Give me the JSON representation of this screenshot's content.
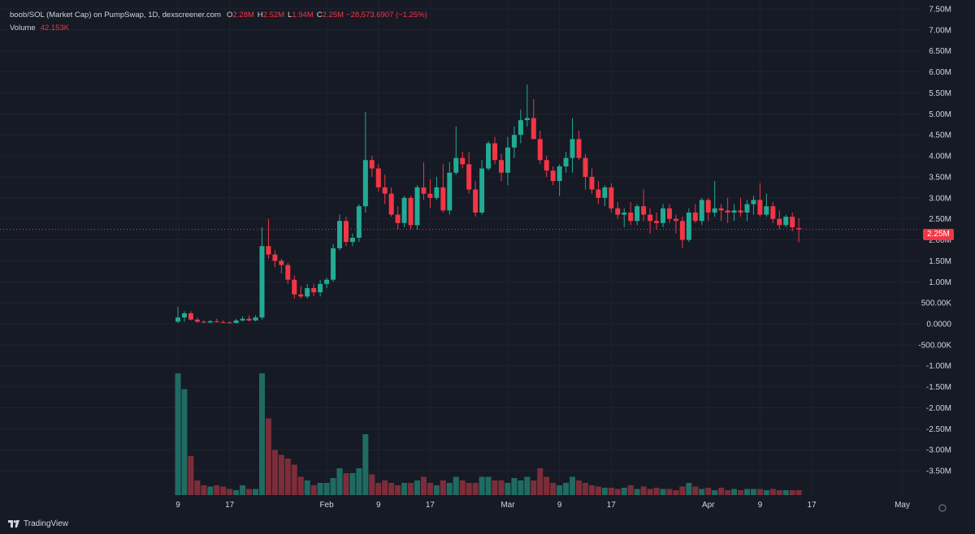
{
  "legend": {
    "symbol": "boob/SOL (Market Cap) on PumpSwap, 1D, dexscreener.com",
    "o_key": "O",
    "o_val": "2.28M",
    "h_key": "H",
    "h_val": "2.52M",
    "l_key": "L",
    "l_val": "1.94M",
    "c_key": "C",
    "c_val": "2.25M",
    "change": "−28,573.6907 (−1.25%)",
    "volume_label": "Volume",
    "volume_val": "42.153K"
  },
  "last_price_label": "2.25M",
  "brand": "TradingView",
  "colors": {
    "up": "#22ab94",
    "down": "#f23645",
    "vol_up": "#1f6b62",
    "vol_down": "#7d2d39",
    "grid": "#1f2330",
    "background": "#161a25"
  },
  "chart_data": {
    "type": "candlestick",
    "timeframe": "1D",
    "y_axis": {
      "range": [
        -3.75,
        7.5
      ],
      "unit": "M",
      "tick_labels": [
        "7.50M",
        "7.00M",
        "6.50M",
        "6.00M",
        "5.50M",
        "5.00M",
        "4.50M",
        "4.00M",
        "3.50M",
        "3.00M",
        "2.50M",
        "2.00M",
        "1.50M",
        "1.00M",
        "500.00K",
        "0.0000",
        "-500.00K",
        "-1.00M",
        "-1.50M",
        "-2.00M",
        "-2.50M",
        "-3.00M",
        "-3.50M"
      ]
    },
    "x_axis": {
      "tick_labels": [
        {
          "label": "9",
          "day": 0
        },
        {
          "label": "17",
          "day": 8
        },
        {
          "label": "Feb",
          "day": 23
        },
        {
          "label": "9",
          "day": 31
        },
        {
          "label": "17",
          "day": 39
        },
        {
          "label": "Mar",
          "day": 51
        },
        {
          "label": "9",
          "day": 59
        },
        {
          "label": "17",
          "day": 67
        },
        {
          "label": "Apr",
          "day": 82
        },
        {
          "label": "9",
          "day": 90
        },
        {
          "label": "17",
          "day": 98
        },
        {
          "label": "May",
          "day": 112
        }
      ]
    },
    "volume_scale_max": 1,
    "candles": [
      {
        "o": 0.05,
        "h": 0.4,
        "l": 0.02,
        "c": 0.15,
        "v": 1.0
      },
      {
        "o": 0.15,
        "h": 0.3,
        "l": 0.05,
        "c": 0.25,
        "v": 0.87
      },
      {
        "o": 0.25,
        "h": 0.3,
        "l": 0.08,
        "c": 0.1,
        "v": 0.32
      },
      {
        "o": 0.1,
        "h": 0.15,
        "l": 0.03,
        "c": 0.05,
        "v": 0.12
      },
      {
        "o": 0.05,
        "h": 0.08,
        "l": 0.02,
        "c": 0.03,
        "v": 0.08
      },
      {
        "o": 0.03,
        "h": 0.1,
        "l": 0.02,
        "c": 0.06,
        "v": 0.07
      },
      {
        "o": 0.06,
        "h": 0.12,
        "l": 0.03,
        "c": 0.04,
        "v": 0.08
      },
      {
        "o": 0.04,
        "h": 0.08,
        "l": 0.02,
        "c": 0.03,
        "v": 0.07
      },
      {
        "o": 0.03,
        "h": 0.06,
        "l": 0.01,
        "c": 0.02,
        "v": 0.05
      },
      {
        "o": 0.02,
        "h": 0.12,
        "l": 0.01,
        "c": 0.08,
        "v": 0.04
      },
      {
        "o": 0.08,
        "h": 0.18,
        "l": 0.05,
        "c": 0.12,
        "v": 0.08
      },
      {
        "o": 0.12,
        "h": 0.2,
        "l": 0.05,
        "c": 0.08,
        "v": 0.05
      },
      {
        "o": 0.08,
        "h": 0.2,
        "l": 0.06,
        "c": 0.15,
        "v": 0.05
      },
      {
        "o": 0.15,
        "h": 2.3,
        "l": 0.1,
        "c": 1.85,
        "v": 1.0
      },
      {
        "o": 1.85,
        "h": 2.5,
        "l": 1.55,
        "c": 1.65,
        "v": 0.63
      },
      {
        "o": 1.65,
        "h": 1.75,
        "l": 1.35,
        "c": 1.5,
        "v": 0.37
      },
      {
        "o": 1.5,
        "h": 1.55,
        "l": 1.2,
        "c": 1.4,
        "v": 0.33
      },
      {
        "o": 1.4,
        "h": 1.45,
        "l": 0.95,
        "c": 1.05,
        "v": 0.3
      },
      {
        "o": 1.05,
        "h": 1.15,
        "l": 0.6,
        "c": 0.7,
        "v": 0.25
      },
      {
        "o": 0.7,
        "h": 0.9,
        "l": 0.6,
        "c": 0.65,
        "v": 0.15
      },
      {
        "o": 0.65,
        "h": 0.95,
        "l": 0.6,
        "c": 0.85,
        "v": 0.12
      },
      {
        "o": 0.85,
        "h": 0.95,
        "l": 0.65,
        "c": 0.75,
        "v": 0.08
      },
      {
        "o": 0.75,
        "h": 1.05,
        "l": 0.65,
        "c": 0.95,
        "v": 0.1
      },
      {
        "o": 0.95,
        "h": 1.1,
        "l": 0.85,
        "c": 1.05,
        "v": 0.1
      },
      {
        "o": 1.05,
        "h": 1.9,
        "l": 1.0,
        "c": 1.8,
        "v": 0.14
      },
      {
        "o": 1.8,
        "h": 2.6,
        "l": 1.75,
        "c": 2.45,
        "v": 0.22
      },
      {
        "o": 2.45,
        "h": 2.55,
        "l": 1.85,
        "c": 1.95,
        "v": 0.18
      },
      {
        "o": 1.95,
        "h": 2.15,
        "l": 1.85,
        "c": 2.05,
        "v": 0.18
      },
      {
        "o": 2.05,
        "h": 2.85,
        "l": 1.95,
        "c": 2.8,
        "v": 0.22
      },
      {
        "o": 2.8,
        "h": 5.05,
        "l": 2.65,
        "c": 3.9,
        "v": 0.5
      },
      {
        "o": 3.9,
        "h": 4.0,
        "l": 3.5,
        "c": 3.7,
        "v": 0.17
      },
      {
        "o": 3.7,
        "h": 3.8,
        "l": 3.15,
        "c": 3.25,
        "v": 0.1
      },
      {
        "o": 3.25,
        "h": 3.55,
        "l": 2.85,
        "c": 3.1,
        "v": 0.12
      },
      {
        "o": 3.1,
        "h": 3.25,
        "l": 2.55,
        "c": 2.6,
        "v": 0.1
      },
      {
        "o": 2.6,
        "h": 2.8,
        "l": 2.25,
        "c": 2.4,
        "v": 0.08
      },
      {
        "o": 2.4,
        "h": 3.05,
        "l": 2.3,
        "c": 3.0,
        "v": 0.1
      },
      {
        "o": 3.0,
        "h": 3.05,
        "l": 2.25,
        "c": 2.35,
        "v": 0.1
      },
      {
        "o": 2.35,
        "h": 3.3,
        "l": 2.25,
        "c": 3.25,
        "v": 0.12
      },
      {
        "o": 3.25,
        "h": 3.85,
        "l": 2.95,
        "c": 3.1,
        "v": 0.15
      },
      {
        "o": 3.1,
        "h": 3.45,
        "l": 2.75,
        "c": 3.0,
        "v": 0.1
      },
      {
        "o": 3.0,
        "h": 3.5,
        "l": 2.95,
        "c": 3.25,
        "v": 0.08
      },
      {
        "o": 3.25,
        "h": 3.8,
        "l": 2.65,
        "c": 2.7,
        "v": 0.12
      },
      {
        "o": 2.7,
        "h": 3.85,
        "l": 2.6,
        "c": 3.6,
        "v": 0.1
      },
      {
        "o": 3.6,
        "h": 4.7,
        "l": 3.55,
        "c": 3.95,
        "v": 0.15
      },
      {
        "o": 3.95,
        "h": 4.1,
        "l": 3.7,
        "c": 3.8,
        "v": 0.12
      },
      {
        "o": 3.8,
        "h": 4.1,
        "l": 3.1,
        "c": 3.2,
        "v": 0.1
      },
      {
        "o": 3.2,
        "h": 3.4,
        "l": 2.55,
        "c": 2.65,
        "v": 0.1
      },
      {
        "o": 2.65,
        "h": 3.9,
        "l": 2.6,
        "c": 3.7,
        "v": 0.15
      },
      {
        "o": 3.7,
        "h": 4.35,
        "l": 3.65,
        "c": 4.3,
        "v": 0.15
      },
      {
        "o": 4.3,
        "h": 4.45,
        "l": 3.8,
        "c": 3.9,
        "v": 0.12
      },
      {
        "o": 3.9,
        "h": 4.05,
        "l": 3.4,
        "c": 3.6,
        "v": 0.12
      },
      {
        "o": 3.6,
        "h": 4.45,
        "l": 3.3,
        "c": 4.2,
        "v": 0.1
      },
      {
        "o": 4.2,
        "h": 4.7,
        "l": 3.95,
        "c": 4.5,
        "v": 0.14
      },
      {
        "o": 4.5,
        "h": 5.1,
        "l": 4.3,
        "c": 4.85,
        "v": 0.12
      },
      {
        "o": 4.85,
        "h": 5.7,
        "l": 4.7,
        "c": 4.9,
        "v": 0.15
      },
      {
        "o": 4.9,
        "h": 5.35,
        "l": 4.4,
        "c": 4.4,
        "v": 0.12
      },
      {
        "o": 4.4,
        "h": 4.6,
        "l": 3.8,
        "c": 3.9,
        "v": 0.22
      },
      {
        "o": 3.9,
        "h": 4.0,
        "l": 3.5,
        "c": 3.65,
        "v": 0.15
      },
      {
        "o": 3.65,
        "h": 3.75,
        "l": 3.3,
        "c": 3.4,
        "v": 0.1
      },
      {
        "o": 3.4,
        "h": 3.8,
        "l": 3.05,
        "c": 3.75,
        "v": 0.08
      },
      {
        "o": 3.75,
        "h": 4.1,
        "l": 3.6,
        "c": 3.95,
        "v": 0.1
      },
      {
        "o": 3.95,
        "h": 4.9,
        "l": 3.6,
        "c": 4.4,
        "v": 0.15
      },
      {
        "o": 4.4,
        "h": 4.6,
        "l": 3.9,
        "c": 3.95,
        "v": 0.12
      },
      {
        "o": 3.95,
        "h": 4.05,
        "l": 3.2,
        "c": 3.5,
        "v": 0.1
      },
      {
        "o": 3.5,
        "h": 3.7,
        "l": 3.1,
        "c": 3.2,
        "v": 0.08
      },
      {
        "o": 3.2,
        "h": 3.4,
        "l": 2.85,
        "c": 3.0,
        "v": 0.07
      },
      {
        "o": 3.0,
        "h": 3.3,
        "l": 2.8,
        "c": 3.25,
        "v": 0.06
      },
      {
        "o": 3.25,
        "h": 3.35,
        "l": 2.65,
        "c": 2.75,
        "v": 0.06
      },
      {
        "o": 2.75,
        "h": 2.9,
        "l": 2.5,
        "c": 2.6,
        "v": 0.05
      },
      {
        "o": 2.6,
        "h": 2.75,
        "l": 2.3,
        "c": 2.65,
        "v": 0.06
      },
      {
        "o": 2.65,
        "h": 2.9,
        "l": 2.35,
        "c": 2.45,
        "v": 0.08
      },
      {
        "o": 2.45,
        "h": 2.85,
        "l": 2.35,
        "c": 2.8,
        "v": 0.05
      },
      {
        "o": 2.8,
        "h": 3.2,
        "l": 2.45,
        "c": 2.6,
        "v": 0.07
      },
      {
        "o": 2.6,
        "h": 2.75,
        "l": 2.15,
        "c": 2.45,
        "v": 0.05
      },
      {
        "o": 2.45,
        "h": 2.65,
        "l": 2.25,
        "c": 2.4,
        "v": 0.06
      },
      {
        "o": 2.4,
        "h": 2.85,
        "l": 2.3,
        "c": 2.75,
        "v": 0.05
      },
      {
        "o": 2.75,
        "h": 2.85,
        "l": 2.4,
        "c": 2.5,
        "v": 0.05
      },
      {
        "o": 2.5,
        "h": 2.6,
        "l": 2.15,
        "c": 2.45,
        "v": 0.04
      },
      {
        "o": 2.45,
        "h": 2.55,
        "l": 1.8,
        "c": 2.0,
        "v": 0.07
      },
      {
        "o": 2.0,
        "h": 2.75,
        "l": 1.95,
        "c": 2.65,
        "v": 0.1
      },
      {
        "o": 2.65,
        "h": 2.85,
        "l": 2.4,
        "c": 2.45,
        "v": 0.07
      },
      {
        "o": 2.45,
        "h": 3.0,
        "l": 2.35,
        "c": 2.95,
        "v": 0.05
      },
      {
        "o": 2.95,
        "h": 3.0,
        "l": 2.45,
        "c": 2.65,
        "v": 0.06
      },
      {
        "o": 2.65,
        "h": 3.4,
        "l": 2.55,
        "c": 2.75,
        "v": 0.04
      },
      {
        "o": 2.75,
        "h": 2.85,
        "l": 2.45,
        "c": 2.7,
        "v": 0.06
      },
      {
        "o": 2.7,
        "h": 3.0,
        "l": 2.4,
        "c": 2.65,
        "v": 0.04
      },
      {
        "o": 2.65,
        "h": 2.85,
        "l": 2.45,
        "c": 2.7,
        "v": 0.05
      },
      {
        "o": 2.7,
        "h": 3.0,
        "l": 2.55,
        "c": 2.65,
        "v": 0.04
      },
      {
        "o": 2.65,
        "h": 2.95,
        "l": 2.45,
        "c": 2.85,
        "v": 0.05
      },
      {
        "o": 2.85,
        "h": 3.05,
        "l": 2.6,
        "c": 2.95,
        "v": 0.05
      },
      {
        "o": 2.95,
        "h": 3.35,
        "l": 2.55,
        "c": 2.6,
        "v": 0.05
      },
      {
        "o": 2.6,
        "h": 3.1,
        "l": 2.55,
        "c": 2.8,
        "v": 0.04
      },
      {
        "o": 2.8,
        "h": 2.9,
        "l": 2.4,
        "c": 2.5,
        "v": 0.05
      },
      {
        "o": 2.5,
        "h": 2.7,
        "l": 2.25,
        "c": 2.35,
        "v": 0.04
      },
      {
        "o": 2.35,
        "h": 2.6,
        "l": 2.3,
        "c": 2.55,
        "v": 0.04
      },
      {
        "o": 2.55,
        "h": 2.65,
        "l": 2.2,
        "c": 2.3,
        "v": 0.04
      },
      {
        "o": 2.28,
        "h": 2.52,
        "l": 1.94,
        "c": 2.25,
        "v": 0.04
      }
    ]
  }
}
